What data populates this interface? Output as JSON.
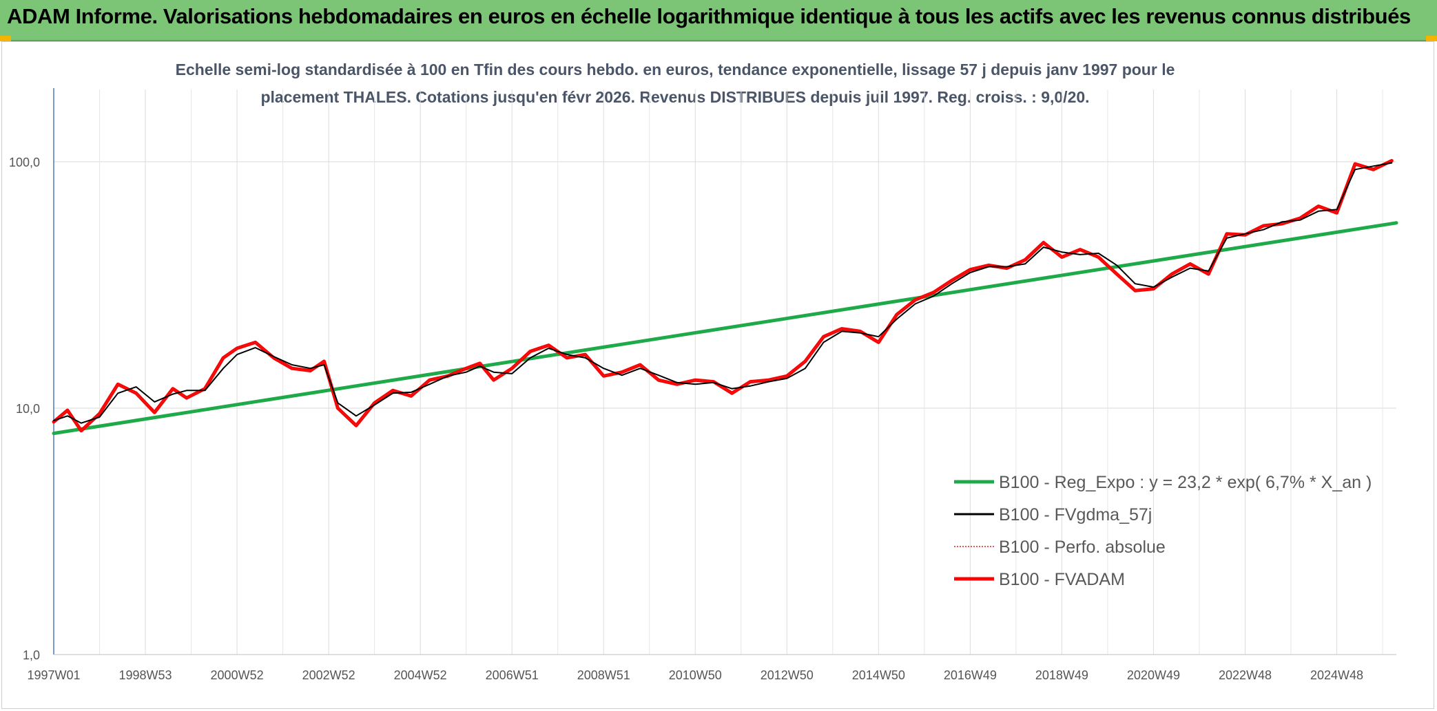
{
  "header": {
    "title": "ADAM Informe. Valorisations hebdomadaires en euros en échelle logarithmique identique à tous les actifs avec les revenus connus distribués"
  },
  "chart_data": {
    "type": "line",
    "title": "Echelle semi-log standardisée à 100 en Tfin des cours hebdo. en euros, tendance exponentielle, lissage 57 j depuis janv 1997 pour le",
    "subtitle": "placement THALES. Cotations jusqu'en févr 2026. Revenus DISTRIBUES depuis juil 1997. Reg. croiss. : 9,0/20.",
    "y_scale": "log",
    "ylim": [
      1,
      100
    ],
    "y_ticks": [
      "1,0",
      "10,0",
      "100,0"
    ],
    "xlim": [
      1997.0,
      2026.3
    ],
    "x_ticks": [
      {
        "label": "1997W01",
        "x": 1997.0
      },
      {
        "label": "1998W53",
        "x": 1999.0
      },
      {
        "label": "2000W52",
        "x": 2001.0
      },
      {
        "label": "2002W52",
        "x": 2003.0
      },
      {
        "label": "2004W52",
        "x": 2005.0
      },
      {
        "label": "2006W51",
        "x": 2007.0
      },
      {
        "label": "2008W51",
        "x": 2009.0
      },
      {
        "label": "2010W50",
        "x": 2011.0
      },
      {
        "label": "2012W50",
        "x": 2013.0
      },
      {
        "label": "2014W50",
        "x": 2015.0
      },
      {
        "label": "2016W49",
        "x": 2017.0
      },
      {
        "label": "2018W49",
        "x": 2019.0
      },
      {
        "label": "2020W49",
        "x": 2021.0
      },
      {
        "label": "2022W48",
        "x": 2023.0
      },
      {
        "label": "2024W48",
        "x": 2025.0
      }
    ],
    "grid": true,
    "legend_position": "bottom-right",
    "series": [
      {
        "name": "B100 - Reg_Expo : y = 23,2 * exp( 6,7% *  X_an )",
        "color": "#1faa4a",
        "style": "thick",
        "x": [
          1997.0,
          2026.3
        ],
        "y": [
          7.9,
          56.5
        ]
      },
      {
        "name": "B100 - FVgdma_57j",
        "color": "#000000",
        "style": "thin",
        "x": [
          1997.0,
          1997.3,
          1997.6,
          1998.0,
          1998.4,
          1998.8,
          1999.2,
          1999.6,
          1999.9,
          2000.3,
          2000.7,
          2001.0,
          2001.4,
          2001.8,
          2002.2,
          2002.6,
          2002.9,
          2003.2,
          2003.6,
          2004.0,
          2004.4,
          2004.8,
          2005.2,
          2005.6,
          2006.0,
          2006.3,
          2006.6,
          2007.0,
          2007.4,
          2007.8,
          2008.2,
          2008.6,
          2009.0,
          2009.4,
          2009.8,
          2010.2,
          2010.6,
          2011.0,
          2011.4,
          2011.8,
          2012.2,
          2012.6,
          2013.0,
          2013.4,
          2013.8,
          2014.2,
          2014.6,
          2015.0,
          2015.4,
          2015.8,
          2016.2,
          2016.6,
          2017.0,
          2017.4,
          2017.8,
          2018.2,
          2018.6,
          2019.0,
          2019.4,
          2019.8,
          2020.2,
          2020.6,
          2021.0,
          2021.4,
          2021.8,
          2022.2,
          2022.6,
          2023.0,
          2023.4,
          2023.8,
          2024.2,
          2024.6,
          2025.0,
          2025.4,
          2025.8,
          2026.2
        ],
        "y": [
          8.9,
          9.3,
          8.7,
          9.2,
          11.5,
          12.2,
          10.6,
          11.4,
          11.8,
          11.8,
          14.5,
          16.5,
          17.6,
          16.2,
          15.0,
          14.5,
          15.0,
          10.5,
          9.3,
          10.3,
          11.5,
          11.6,
          12.5,
          13.5,
          14.0,
          14.8,
          14.0,
          13.8,
          16.0,
          17.5,
          16.5,
          16.0,
          14.5,
          13.6,
          14.5,
          13.6,
          12.7,
          12.5,
          12.7,
          12.0,
          12.3,
          12.8,
          13.2,
          14.5,
          18.5,
          20.5,
          20.2,
          19.5,
          23.0,
          26.5,
          28.5,
          32.0,
          35.5,
          37.5,
          37.5,
          38.5,
          45.0,
          43.0,
          42.0,
          42.5,
          38.0,
          32.0,
          31.0,
          34.0,
          37.0,
          36.0,
          49.0,
          51.0,
          53.0,
          57.0,
          58.0,
          63.0,
          64.0,
          93.0,
          96.0,
          99.0
        ]
      },
      {
        "name": "B100 - Perfo. absolue",
        "color": "#e41a1c",
        "style": "dotted",
        "x": [
          1997.0,
          1997.3,
          1997.6,
          1998.0,
          1998.4,
          1998.8,
          1999.2,
          1999.6,
          1999.9,
          2000.3,
          2000.7,
          2001.0,
          2001.4,
          2001.8,
          2002.2,
          2002.6,
          2002.9,
          2003.2,
          2003.6,
          2004.0,
          2004.4,
          2004.8,
          2005.2,
          2005.6,
          2006.0,
          2006.3,
          2006.6,
          2007.0,
          2007.4,
          2007.8,
          2008.2,
          2008.6,
          2009.0,
          2009.4,
          2009.8,
          2010.2,
          2010.6,
          2011.0,
          2011.4,
          2011.8,
          2012.2,
          2012.6,
          2013.0,
          2013.4,
          2013.8,
          2014.2,
          2014.6,
          2015.0,
          2015.4,
          2015.8,
          2016.2,
          2016.6,
          2017.0,
          2017.4,
          2017.8,
          2018.2,
          2018.6,
          2019.0,
          2019.4,
          2019.8,
          2020.2,
          2020.6,
          2021.0,
          2021.4,
          2021.8,
          2022.2,
          2022.6,
          2023.0,
          2023.4,
          2023.8,
          2024.2,
          2024.6,
          2025.0,
          2025.4,
          2025.8,
          2026.2
        ],
        "y": [
          8.8,
          9.8,
          8.1,
          9.5,
          12.5,
          11.5,
          9.6,
          12.0,
          11.0,
          12.0,
          16.0,
          17.5,
          18.5,
          16.0,
          14.5,
          14.2,
          15.5,
          10.0,
          8.5,
          10.5,
          11.8,
          11.2,
          13.0,
          13.5,
          14.5,
          15.2,
          13.0,
          14.5,
          17.0,
          18.0,
          16.0,
          16.5,
          13.5,
          14.0,
          15.0,
          13.0,
          12.5,
          13.0,
          12.8,
          11.5,
          12.8,
          13.0,
          13.5,
          15.5,
          19.5,
          21.0,
          20.5,
          18.5,
          24.0,
          27.5,
          29.5,
          33.0,
          36.5,
          38.0,
          37.0,
          40.0,
          47.0,
          41.0,
          44.0,
          41.0,
          35.0,
          30.0,
          30.5,
          35.0,
          38.5,
          35.0,
          51.0,
          50.5,
          55.0,
          56.0,
          59.0,
          66.0,
          62.0,
          98.0,
          93.0,
          101.0
        ]
      },
      {
        "name": "B100 - FVADAM",
        "color": "#ff0000",
        "style": "thick",
        "x": [
          1997.0,
          1997.3,
          1997.6,
          1998.0,
          1998.4,
          1998.8,
          1999.2,
          1999.6,
          1999.9,
          2000.3,
          2000.7,
          2001.0,
          2001.4,
          2001.8,
          2002.2,
          2002.6,
          2002.9,
          2003.2,
          2003.6,
          2004.0,
          2004.4,
          2004.8,
          2005.2,
          2005.6,
          2006.0,
          2006.3,
          2006.6,
          2007.0,
          2007.4,
          2007.8,
          2008.2,
          2008.6,
          2009.0,
          2009.4,
          2009.8,
          2010.2,
          2010.6,
          2011.0,
          2011.4,
          2011.8,
          2012.2,
          2012.6,
          2013.0,
          2013.4,
          2013.8,
          2014.2,
          2014.6,
          2015.0,
          2015.4,
          2015.8,
          2016.2,
          2016.6,
          2017.0,
          2017.4,
          2017.8,
          2018.2,
          2018.6,
          2019.0,
          2019.4,
          2019.8,
          2020.2,
          2020.6,
          2021.0,
          2021.4,
          2021.8,
          2022.2,
          2022.6,
          2023.0,
          2023.4,
          2023.8,
          2024.2,
          2024.6,
          2025.0,
          2025.4,
          2025.8,
          2026.2
        ],
        "y": [
          8.8,
          9.8,
          8.1,
          9.5,
          12.5,
          11.5,
          9.6,
          12.0,
          11.0,
          12.0,
          16.0,
          17.5,
          18.5,
          16.0,
          14.5,
          14.2,
          15.5,
          10.0,
          8.5,
          10.5,
          11.8,
          11.2,
          13.0,
          13.5,
          14.5,
          15.2,
          13.0,
          14.5,
          17.0,
          18.0,
          16.0,
          16.5,
          13.5,
          14.0,
          15.0,
          13.0,
          12.5,
          13.0,
          12.8,
          11.5,
          12.8,
          13.0,
          13.5,
          15.5,
          19.5,
          21.0,
          20.5,
          18.5,
          24.0,
          27.5,
          29.5,
          33.0,
          36.5,
          38.0,
          37.0,
          40.0,
          47.0,
          41.0,
          44.0,
          41.0,
          35.0,
          30.0,
          30.5,
          35.0,
          38.5,
          35.0,
          51.0,
          50.5,
          55.0,
          56.0,
          59.0,
          66.0,
          62.0,
          98.0,
          93.0,
          101.0
        ]
      }
    ]
  }
}
